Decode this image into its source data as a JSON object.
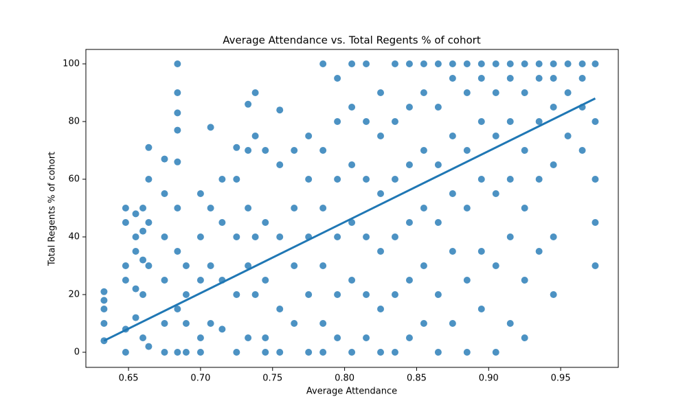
{
  "chart_data": {
    "type": "scatter",
    "title": "Average Attendance vs. Total Regents % of cohort",
    "x_label": "Average Attendance",
    "y_label": "Total Regents % of cohort",
    "xlim": [
      0.6204,
      0.99
    ],
    "ylim": [
      -5.24,
      105
    ],
    "xticks": [
      0.65,
      {
        "value": 0.7,
        "label": "0.70"
      },
      0.75,
      {
        "value": 0.8,
        "label": "0.80"
      },
      0.85,
      {
        "value": 0.9,
        "label": "0.90"
      },
      0.95
    ],
    "yticks": [
      0,
      20,
      40,
      60,
      80,
      100
    ],
    "color": "#1f77b4",
    "x": [
      0.633,
      0.633,
      0.633,
      0.633,
      0.633,
      0.648,
      0.648,
      0.648,
      0.648,
      0.648,
      0.648,
      0.655,
      0.655,
      0.655,
      0.655,
      0.655,
      0.66,
      0.66,
      0.66,
      0.66,
      0.66,
      0.664,
      0.664,
      0.664,
      0.664,
      0.664,
      0.675,
      0.675,
      0.675,
      0.675,
      0.675,
      0.675,
      0.684,
      0.684,
      0.684,
      0.684,
      0.684,
      0.684,
      0.684,
      0.684,
      0.684,
      0.69,
      0.69,
      0.69,
      0.69,
      0.7,
      0.7,
      0.7,
      0.7,
      0.7,
      0.707,
      0.707,
      0.707,
      0.707,
      0.715,
      0.715,
      0.715,
      0.715,
      0.725,
      0.725,
      0.725,
      0.725,
      0.725,
      0.733,
      0.733,
      0.733,
      0.733,
      0.733,
      0.738,
      0.738,
      0.738,
      0.738,
      0.745,
      0.745,
      0.745,
      0.745,
      0.745,
      0.755,
      0.755,
      0.755,
      0.755,
      0.755,
      0.765,
      0.765,
      0.765,
      0.765,
      0.775,
      0.775,
      0.775,
      0.775,
      0.775,
      0.785,
      0.785,
      0.785,
      0.785,
      0.785,
      0.785,
      0.795,
      0.795,
      0.795,
      0.795,
      0.795,
      0.795,
      0.805,
      0.805,
      0.805,
      0.805,
      0.805,
      0.805,
      0.815,
      0.815,
      0.815,
      0.815,
      0.815,
      0.815,
      0.825,
      0.825,
      0.825,
      0.825,
      0.825,
      0.825,
      0.835,
      0.835,
      0.835,
      0.835,
      0.835,
      0.835,
      0.845,
      0.845,
      0.845,
      0.845,
      0.845,
      0.845,
      0.855,
      0.855,
      0.855,
      0.855,
      0.855,
      0.855,
      0.865,
      0.865,
      0.865,
      0.865,
      0.865,
      0.865,
      0.875,
      0.875,
      0.875,
      0.875,
      0.875,
      0.875,
      0.885,
      0.885,
      0.885,
      0.885,
      0.885,
      0.885,
      0.895,
      0.895,
      0.895,
      0.895,
      0.895,
      0.895,
      0.905,
      0.905,
      0.905,
      0.905,
      0.905,
      0.905,
      0.915,
      0.915,
      0.915,
      0.915,
      0.915,
      0.915,
      0.925,
      0.925,
      0.925,
      0.925,
      0.925,
      0.925,
      0.935,
      0.935,
      0.935,
      0.935,
      0.935,
      0.945,
      0.945,
      0.945,
      0.945,
      0.945,
      0.945,
      0.955,
      0.955,
      0.955,
      0.965,
      0.965,
      0.965,
      0.965,
      0.974,
      0.974,
      0.974,
      0.974,
      0.974
    ],
    "values": [
      21,
      18,
      15,
      10,
      4,
      50,
      45,
      30,
      25,
      8,
      0,
      48,
      40,
      35,
      22,
      12,
      50,
      42,
      32,
      20,
      5,
      71,
      60,
      45,
      30,
      2,
      67,
      55,
      40,
      25,
      10,
      0,
      100,
      90,
      83,
      77,
      66,
      50,
      35,
      15,
      0,
      30,
      20,
      10,
      0,
      55,
      40,
      25,
      5,
      0,
      78,
      50,
      30,
      10,
      60,
      45,
      25,
      8,
      71,
      60,
      40,
      20,
      0,
      86,
      70,
      50,
      30,
      5,
      90,
      75,
      40,
      20,
      70,
      45,
      25,
      5,
      0,
      84,
      65,
      40,
      15,
      0,
      70,
      50,
      30,
      10,
      75,
      60,
      40,
      20,
      0,
      100,
      70,
      50,
      30,
      10,
      0,
      95,
      80,
      60,
      40,
      20,
      5,
      100,
      85,
      65,
      45,
      25,
      0,
      100,
      80,
      60,
      40,
      20,
      5,
      90,
      75,
      55,
      35,
      15,
      0,
      100,
      80,
      60,
      40,
      20,
      0,
      100,
      85,
      65,
      45,
      25,
      5,
      100,
      90,
      70,
      50,
      30,
      10,
      100,
      85,
      65,
      45,
      20,
      0,
      100,
      95,
      75,
      55,
      35,
      10,
      100,
      90,
      70,
      50,
      25,
      0,
      100,
      95,
      80,
      60,
      35,
      15,
      100,
      90,
      75,
      55,
      30,
      0,
      100,
      95,
      80,
      60,
      40,
      10,
      100,
      90,
      70,
      50,
      25,
      5,
      100,
      95,
      80,
      60,
      35,
      100,
      95,
      85,
      65,
      40,
      20,
      100,
      90,
      75,
      100,
      95,
      85,
      70,
      100,
      80,
      60,
      45,
      30
    ],
    "trend_line": {
      "x": [
        0.633,
        0.974
      ],
      "values": [
        4,
        88
      ]
    }
  }
}
